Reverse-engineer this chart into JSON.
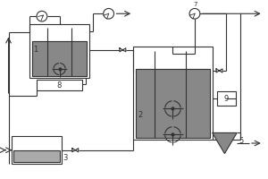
{
  "bg_color": "#ffffff",
  "line_color": "#333333",
  "fill_color": "#888888",
  "fill_color2": "#999999",
  "figsize": [
    3.0,
    2.0
  ],
  "dpi": 100,
  "lw": 0.8
}
